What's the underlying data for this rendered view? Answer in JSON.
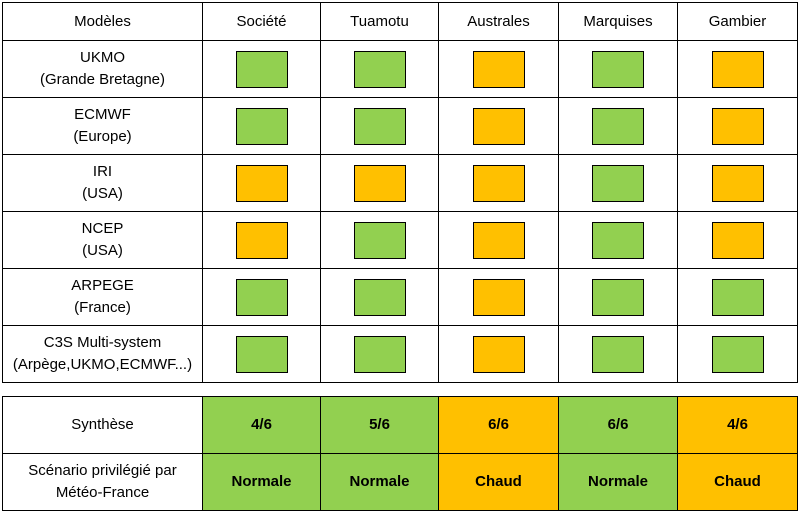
{
  "colors": {
    "green": "#92d050",
    "orange": "#ffc000"
  },
  "header": {
    "first": "Modèles",
    "regions": [
      "Société",
      "Tuamotu",
      "Australes",
      "Marquises",
      "Gambier"
    ]
  },
  "models": [
    {
      "name": "UKMO",
      "origin": "(Grande Bretagne)",
      "cells": [
        "green",
        "green",
        "orange",
        "green",
        "orange"
      ]
    },
    {
      "name": "ECMWF",
      "origin": "(Europe)",
      "cells": [
        "green",
        "green",
        "orange",
        "green",
        "orange"
      ]
    },
    {
      "name": "IRI",
      "origin": "(USA)",
      "cells": [
        "orange",
        "orange",
        "orange",
        "green",
        "orange"
      ]
    },
    {
      "name": "NCEP",
      "origin": "(USA)",
      "cells": [
        "orange",
        "green",
        "orange",
        "green",
        "orange"
      ]
    },
    {
      "name": "ARPEGE",
      "origin": "(France)",
      "cells": [
        "green",
        "green",
        "orange",
        "green",
        "green"
      ]
    },
    {
      "name": "C3S Multi-system",
      "origin": "(Arpège,UKMO,ECMWF...)",
      "cells": [
        "green",
        "green",
        "orange",
        "green",
        "green"
      ]
    }
  ],
  "synthese": {
    "label": "Synthèse",
    "values": [
      "4/6",
      "5/6",
      "6/6",
      "6/6",
      "4/6"
    ],
    "colors": [
      "green",
      "green",
      "orange",
      "green",
      "orange"
    ]
  },
  "scenario": {
    "label_line1": "Scénario privilégié par",
    "label_line2": "Météo-France",
    "values": [
      "Normale",
      "Normale",
      "Chaud",
      "Normale",
      "Chaud"
    ],
    "colors": [
      "green",
      "green",
      "orange",
      "green",
      "orange"
    ]
  }
}
